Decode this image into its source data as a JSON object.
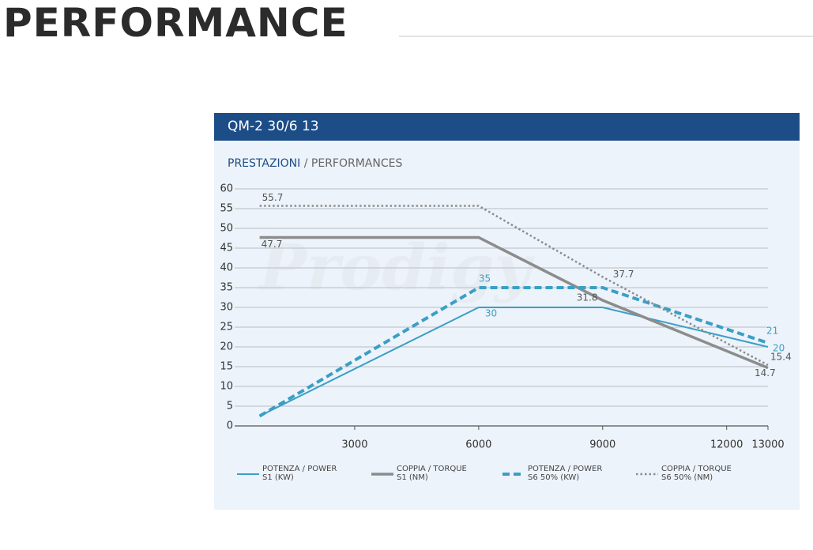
{
  "page_title": "PERFORMANCE",
  "chart_data": {
    "type": "line",
    "title": "QM-2 30/6 13",
    "subtitle": [
      "PRESTAZIONI",
      "/ PERFORMANCES"
    ],
    "watermark": "Prodigy",
    "xlim": [
      0,
      13000
    ],
    "xticks": [
      3000,
      6000,
      9000,
      12000,
      13000
    ],
    "ylim": [
      0,
      60
    ],
    "yticks": [
      0,
      5,
      10,
      15,
      20,
      25,
      30,
      35,
      40,
      45,
      50,
      55,
      60
    ],
    "grid": true,
    "series": [
      {
        "name": "POTENZA / POWER\nS1 (KW)",
        "color": "#3a9fc6",
        "line_style": "solid",
        "x": [
          700,
          6000,
          9000,
          13000
        ],
        "values": [
          2.5,
          30,
          30,
          20
        ],
        "value_labels": [
          null,
          "30",
          null,
          "20"
        ]
      },
      {
        "name": "COPPIA / TORQUE\nS1 (NM)",
        "color": "#8c8c8c",
        "line_style": "solid",
        "x": [
          700,
          6000,
          9000,
          13000
        ],
        "values": [
          47.7,
          47.7,
          31.8,
          14.7
        ],
        "value_labels": [
          "47.7",
          null,
          "31.8",
          "14.7"
        ]
      },
      {
        "name": "POTENZA / POWER\nS6 50% (KW)",
        "color": "#3a9fc6",
        "line_style": "dashed",
        "x": [
          700,
          6000,
          9000,
          13000
        ],
        "values": [
          2.5,
          35,
          35,
          21
        ],
        "value_labels": [
          null,
          "35",
          null,
          "21"
        ]
      },
      {
        "name": "COPPIA / TORQUE\nS6 50% (NM)",
        "color": "#8c8c8c",
        "line_style": "dotted",
        "x": [
          700,
          6000,
          9000,
          13000
        ],
        "values": [
          55.7,
          55.7,
          37.7,
          15.4
        ],
        "value_labels": [
          "55.7",
          null,
          "37.7",
          "15.4"
        ]
      }
    ]
  }
}
